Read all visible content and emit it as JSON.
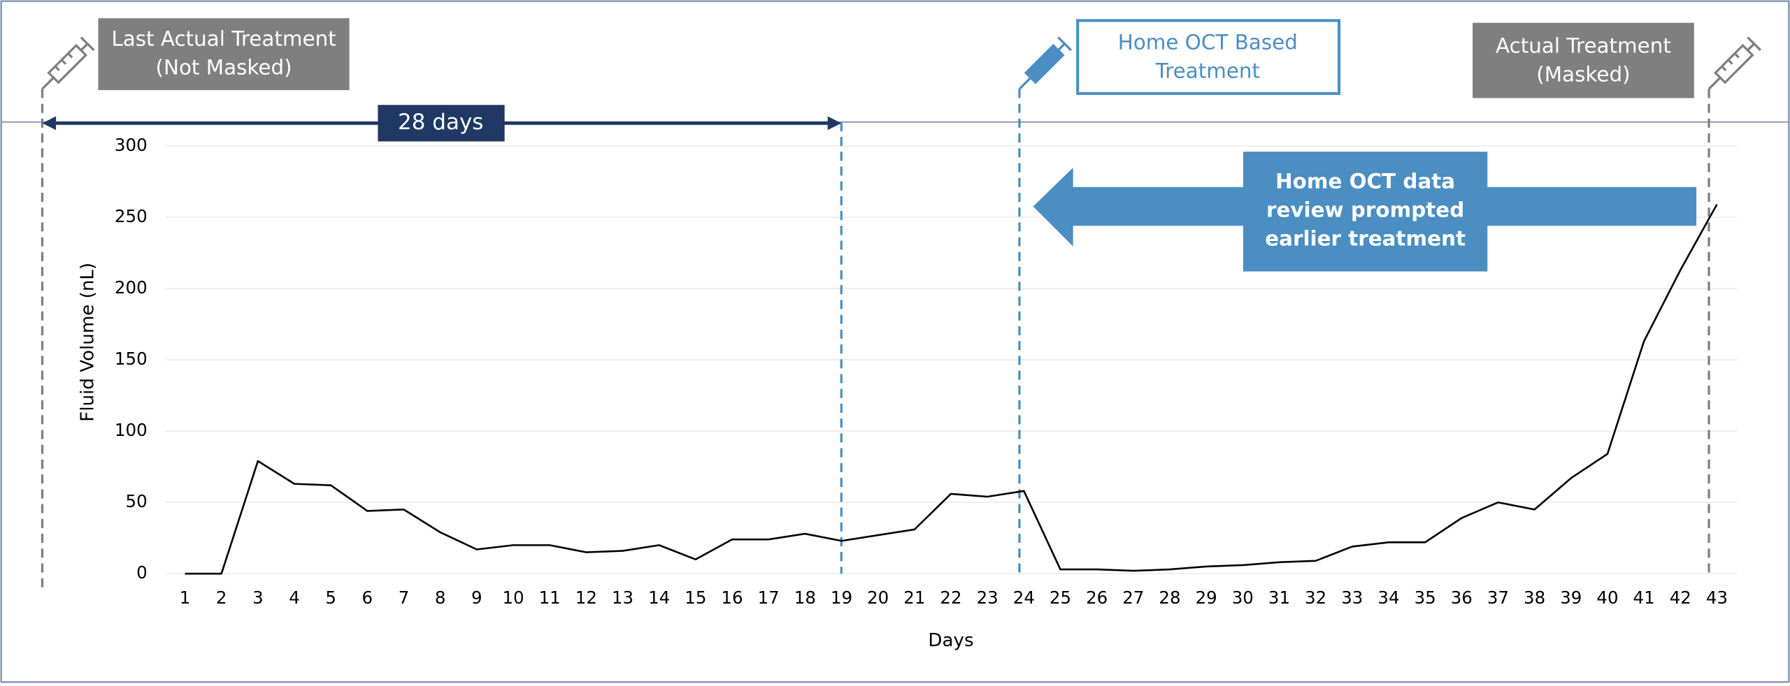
{
  "chart_data": {
    "type": "line",
    "x_label": "Days",
    "y_label": "Fluid Volume (nL)",
    "categories": [
      "1",
      "2",
      "3",
      "4",
      "5",
      "6",
      "7",
      "8",
      "9",
      "10",
      "11",
      "12",
      "13",
      "14",
      "15",
      "16",
      "17",
      "18",
      "19",
      "20",
      "21",
      "22",
      "23",
      "24",
      "25",
      "26",
      "27",
      "28",
      "29",
      "30",
      "31",
      "32",
      "33",
      "34",
      "35",
      "36",
      "37",
      "38",
      "39",
      "40",
      "41",
      "42",
      "43"
    ],
    "values": [
      0,
      0,
      79,
      63,
      62,
      44,
      45,
      29,
      17,
      20,
      20,
      15,
      16,
      20,
      10,
      24,
      24,
      28,
      23,
      27,
      31,
      56,
      54,
      58,
      3,
      3,
      2,
      3,
      5,
      6,
      8,
      9,
      19,
      22,
      22,
      39,
      50,
      45,
      67,
      84,
      163,
      213,
      259
    ],
    "color": "#000000",
    "ylim": [
      0,
      300
    ],
    "yticks": [
      0,
      50,
      100,
      150,
      200,
      250,
      300
    ],
    "grid": true,
    "annotations": [
      {
        "lines": [
          "Last Actual Treatment",
          "(Not Masked)"
        ]
      },
      {
        "lines": [
          "Home OCT Based",
          "Treatment"
        ]
      },
      {
        "lines": [
          "Actual Treatment",
          "(Masked)"
        ]
      }
    ],
    "interval_label": "28 days",
    "callout": {
      "lines": [
        "Home OCT data",
        "review prompted",
        "earlier treatment"
      ]
    }
  }
}
